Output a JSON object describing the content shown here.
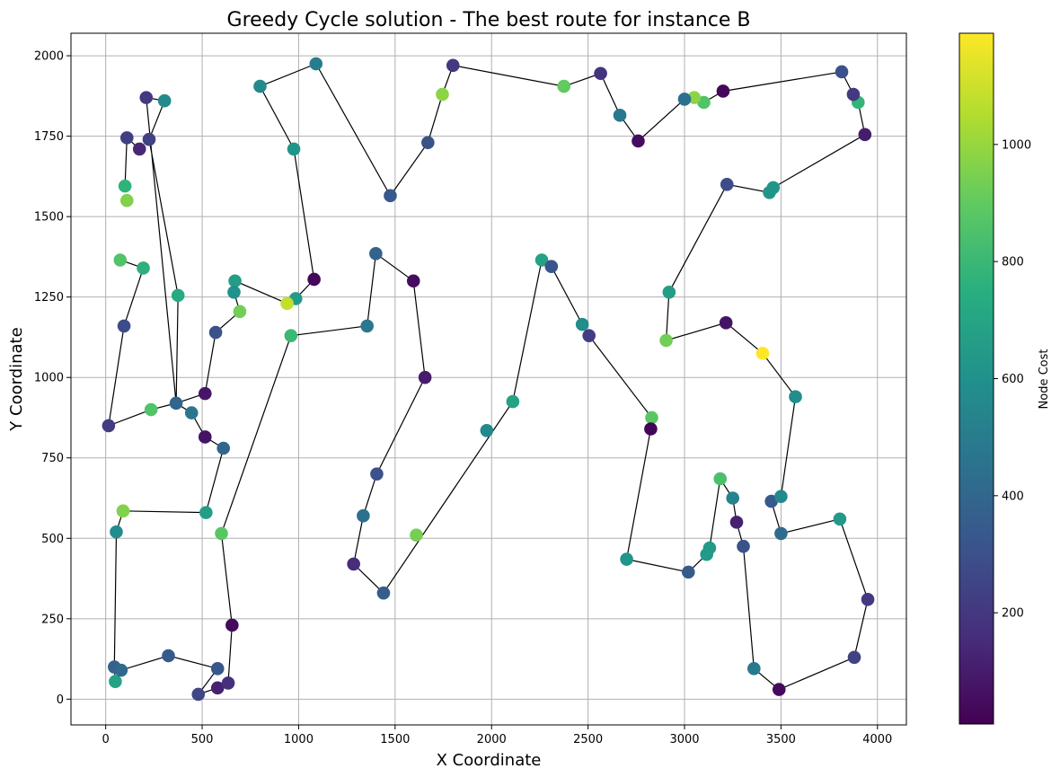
{
  "chart_data": {
    "type": "scatter",
    "title": "Greedy Cycle solution - The best route for instance B",
    "xlabel": "X Coordinate",
    "ylabel": "Y Coordinate",
    "colorbar_label": "Node Cost",
    "xlim": [
      -180,
      4150
    ],
    "ylim": [
      -80,
      2070
    ],
    "xticks": [
      0,
      500,
      1000,
      1500,
      2000,
      2500,
      3000,
      3500,
      4000
    ],
    "yticks": [
      0,
      250,
      500,
      750,
      1000,
      1250,
      1500,
      1750,
      2000
    ],
    "cost_range": [
      10,
      1190
    ],
    "cost_ticks": [
      200,
      400,
      600,
      800,
      1000
    ],
    "colormap": "viridis",
    "grid": true,
    "route": [
      [
        1090,
        1975
      ],
      [
        800,
        1905
      ],
      [
        975,
        1710
      ],
      [
        1080,
        1305
      ],
      [
        985,
        1245
      ],
      [
        940,
        1230
      ],
      [
        670,
        1300
      ],
      [
        665,
        1265
      ],
      [
        695,
        1205
      ],
      [
        570,
        1140
      ],
      [
        515,
        950
      ],
      [
        365,
        920
      ],
      [
        210,
        1870
      ],
      [
        305,
        1860
      ],
      [
        225,
        1740
      ],
      [
        375,
        1255
      ],
      [
        365,
        920
      ],
      [
        445,
        890
      ],
      [
        515,
        815
      ],
      [
        610,
        780
      ],
      [
        520,
        580
      ],
      [
        90,
        585
      ],
      [
        55,
        520
      ],
      [
        45,
        100
      ],
      [
        50,
        55
      ],
      [
        80,
        90
      ],
      [
        325,
        135
      ],
      [
        580,
        95
      ],
      [
        480,
        15
      ],
      [
        580,
        35
      ],
      [
        635,
        50
      ],
      [
        655,
        230
      ],
      [
        600,
        515
      ],
      [
        960,
        1130
      ],
      [
        1355,
        1160
      ],
      [
        1400,
        1385
      ],
      [
        1595,
        1300
      ],
      [
        1655,
        1000
      ],
      [
        1405,
        700
      ],
      [
        1335,
        570
      ],
      [
        1285,
        420
      ],
      [
        1440,
        330
      ],
      [
        2110,
        925
      ],
      [
        2260,
        1365
      ],
      [
        2310,
        1345
      ],
      [
        2470,
        1165
      ],
      [
        2505,
        1130
      ],
      [
        2830,
        875
      ],
      [
        2825,
        840
      ],
      [
        2700,
        435
      ],
      [
        3020,
        395
      ],
      [
        3115,
        450
      ],
      [
        3130,
        470
      ],
      [
        3185,
        685
      ],
      [
        3250,
        625
      ],
      [
        3270,
        550
      ],
      [
        3305,
        475
      ],
      [
        3360,
        95
      ],
      [
        3490,
        30
      ],
      [
        3880,
        130
      ],
      [
        3950,
        310
      ],
      [
        3805,
        560
      ],
      [
        3500,
        515
      ],
      [
        3450,
        615
      ],
      [
        3500,
        630
      ],
      [
        3575,
        940
      ],
      [
        3405,
        1075
      ],
      [
        3215,
        1170
      ],
      [
        2905,
        1115
      ],
      [
        2920,
        1265
      ],
      [
        3220,
        1600
      ],
      [
        3440,
        1575
      ],
      [
        3460,
        1590
      ],
      [
        3935,
        1755
      ],
      [
        3900,
        1855
      ],
      [
        3875,
        1880
      ],
      [
        3815,
        1950
      ],
      [
        3200,
        1890
      ],
      [
        3100,
        1855
      ],
      [
        3050,
        1870
      ],
      [
        3000,
        1865
      ],
      [
        2760,
        1735
      ],
      [
        2665,
        1815
      ],
      [
        2565,
        1945
      ],
      [
        2375,
        1905
      ],
      [
        1800,
        1970
      ],
      [
        1745,
        1880
      ],
      [
        1670,
        1730
      ],
      [
        1475,
        1565
      ],
      [
        1090,
        1975
      ]
    ],
    "extra_route_segments": [
      [
        [
          110,
          1745
        ],
        [
          175,
          1710
        ]
      ],
      [
        [
          110,
          1745
        ],
        [
          100,
          1595
        ]
      ],
      [
        [
          195,
          1340
        ],
        [
          75,
          1365
        ]
      ],
      [
        [
          195,
          1340
        ],
        [
          95,
          1160
        ]
      ],
      [
        [
          95,
          1160
        ],
        [
          15,
          850
        ]
      ],
      [
        [
          15,
          850
        ],
        [
          235,
          900
        ]
      ],
      [
        [
          235,
          900
        ],
        [
          365,
          920
        ]
      ]
    ],
    "points": [
      {
        "x": 1090,
        "y": 1975,
        "cost": 500
      },
      {
        "x": 800,
        "y": 1905,
        "cost": 560
      },
      {
        "x": 975,
        "y": 1710,
        "cost": 620
      },
      {
        "x": 1080,
        "y": 1305,
        "cost": 30
      },
      {
        "x": 985,
        "y": 1245,
        "cost": 640
      },
      {
        "x": 940,
        "y": 1230,
        "cost": 1080
      },
      {
        "x": 670,
        "y": 1300,
        "cost": 660
      },
      {
        "x": 665,
        "y": 1265,
        "cost": 600
      },
      {
        "x": 695,
        "y": 1205,
        "cost": 930
      },
      {
        "x": 570,
        "y": 1140,
        "cost": 300
      },
      {
        "x": 515,
        "y": 950,
        "cost": 80
      },
      {
        "x": 365,
        "y": 920,
        "cost": 390
      },
      {
        "x": 210,
        "y": 1870,
        "cost": 200
      },
      {
        "x": 305,
        "y": 1860,
        "cost": 560
      },
      {
        "x": 225,
        "y": 1740,
        "cost": 240
      },
      {
        "x": 375,
        "y": 1255,
        "cost": 720
      },
      {
        "x": 445,
        "y": 890,
        "cost": 470
      },
      {
        "x": 515,
        "y": 815,
        "cost": 70
      },
      {
        "x": 610,
        "y": 780,
        "cost": 400
      },
      {
        "x": 520,
        "y": 580,
        "cost": 660
      },
      {
        "x": 90,
        "y": 585,
        "cost": 960
      },
      {
        "x": 55,
        "y": 520,
        "cost": 580
      },
      {
        "x": 45,
        "y": 100,
        "cost": 380
      },
      {
        "x": 50,
        "y": 55,
        "cost": 680
      },
      {
        "x": 80,
        "y": 90,
        "cost": 410
      },
      {
        "x": 325,
        "y": 135,
        "cost": 340
      },
      {
        "x": 580,
        "y": 95,
        "cost": 330
      },
      {
        "x": 480,
        "y": 15,
        "cost": 260
      },
      {
        "x": 580,
        "y": 35,
        "cost": 120
      },
      {
        "x": 635,
        "y": 50,
        "cost": 170
      },
      {
        "x": 655,
        "y": 230,
        "cost": 40
      },
      {
        "x": 600,
        "y": 515,
        "cost": 880
      },
      {
        "x": 960,
        "y": 1130,
        "cost": 800
      },
      {
        "x": 1355,
        "y": 1160,
        "cost": 480
      },
      {
        "x": 1400,
        "y": 1385,
        "cost": 380
      },
      {
        "x": 1595,
        "y": 1300,
        "cost": 50
      },
      {
        "x": 1655,
        "y": 1000,
        "cost": 100
      },
      {
        "x": 1405,
        "y": 700,
        "cost": 300
      },
      {
        "x": 1335,
        "y": 570,
        "cost": 440
      },
      {
        "x": 1285,
        "y": 420,
        "cost": 160
      },
      {
        "x": 1440,
        "y": 330,
        "cost": 360
      },
      {
        "x": 2110,
        "y": 925,
        "cost": 680
      },
      {
        "x": 2260,
        "y": 1365,
        "cost": 680
      },
      {
        "x": 2310,
        "y": 1345,
        "cost": 320
      },
      {
        "x": 2470,
        "y": 1165,
        "cost": 580
      },
      {
        "x": 2505,
        "y": 1130,
        "cost": 220
      },
      {
        "x": 2830,
        "y": 875,
        "cost": 880
      },
      {
        "x": 2825,
        "y": 840,
        "cost": 20
      },
      {
        "x": 2700,
        "y": 435,
        "cost": 620
      },
      {
        "x": 3020,
        "y": 395,
        "cost": 340
      },
      {
        "x": 3115,
        "y": 450,
        "cost": 640
      },
      {
        "x": 3130,
        "y": 470,
        "cost": 640
      },
      {
        "x": 3185,
        "y": 685,
        "cost": 840
      },
      {
        "x": 3250,
        "y": 625,
        "cost": 540
      },
      {
        "x": 3270,
        "y": 550,
        "cost": 120
      },
      {
        "x": 3305,
        "y": 475,
        "cost": 300
      },
      {
        "x": 3360,
        "y": 95,
        "cost": 480
      },
      {
        "x": 3490,
        "y": 30,
        "cost": 40
      },
      {
        "x": 3880,
        "y": 130,
        "cost": 240
      },
      {
        "x": 3950,
        "y": 310,
        "cost": 200
      },
      {
        "x": 3805,
        "y": 560,
        "cost": 640
      },
      {
        "x": 3500,
        "y": 515,
        "cost": 420
      },
      {
        "x": 3450,
        "y": 615,
        "cost": 340
      },
      {
        "x": 3500,
        "y": 630,
        "cost": 560
      },
      {
        "x": 3575,
        "y": 940,
        "cost": 580
      },
      {
        "x": 3405,
        "y": 1075,
        "cost": 1190
      },
      {
        "x": 3215,
        "y": 1170,
        "cost": 70
      },
      {
        "x": 2905,
        "y": 1115,
        "cost": 930
      },
      {
        "x": 2920,
        "y": 1265,
        "cost": 660
      },
      {
        "x": 3220,
        "y": 1600,
        "cost": 280
      },
      {
        "x": 3440,
        "y": 1575,
        "cost": 620
      },
      {
        "x": 3460,
        "y": 1590,
        "cost": 620
      },
      {
        "x": 3935,
        "y": 1755,
        "cost": 100
      },
      {
        "x": 3900,
        "y": 1855,
        "cost": 780
      },
      {
        "x": 3875,
        "y": 1880,
        "cost": 200
      },
      {
        "x": 3815,
        "y": 1950,
        "cost": 300
      },
      {
        "x": 3200,
        "y": 1890,
        "cost": 30
      },
      {
        "x": 3100,
        "y": 1855,
        "cost": 860
      },
      {
        "x": 3050,
        "y": 1870,
        "cost": 980
      },
      {
        "x": 3000,
        "y": 1865,
        "cost": 440
      },
      {
        "x": 2760,
        "y": 1735,
        "cost": 50
      },
      {
        "x": 2665,
        "y": 1815,
        "cost": 480
      },
      {
        "x": 2565,
        "y": 1945,
        "cost": 180
      },
      {
        "x": 2375,
        "y": 1905,
        "cost": 900
      },
      {
        "x": 1800,
        "y": 1970,
        "cost": 200
      },
      {
        "x": 1745,
        "y": 1880,
        "cost": 980
      },
      {
        "x": 1670,
        "y": 1730,
        "cost": 300
      },
      {
        "x": 1475,
        "y": 1565,
        "cost": 340
      },
      {
        "x": 110,
        "y": 1745,
        "cost": 230
      },
      {
        "x": 175,
        "y": 1710,
        "cost": 140
      },
      {
        "x": 100,
        "y": 1595,
        "cost": 770
      },
      {
        "x": 110,
        "y": 1550,
        "cost": 960
      },
      {
        "x": 75,
        "y": 1365,
        "cost": 860
      },
      {
        "x": 195,
        "y": 1340,
        "cost": 760
      },
      {
        "x": 95,
        "y": 1160,
        "cost": 280
      },
      {
        "x": 15,
        "y": 850,
        "cost": 220
      },
      {
        "x": 235,
        "y": 900,
        "cost": 860
      },
      {
        "x": 1975,
        "y": 835,
        "cost": 560
      },
      {
        "x": 1610,
        "y": 510,
        "cost": 940
      }
    ]
  }
}
